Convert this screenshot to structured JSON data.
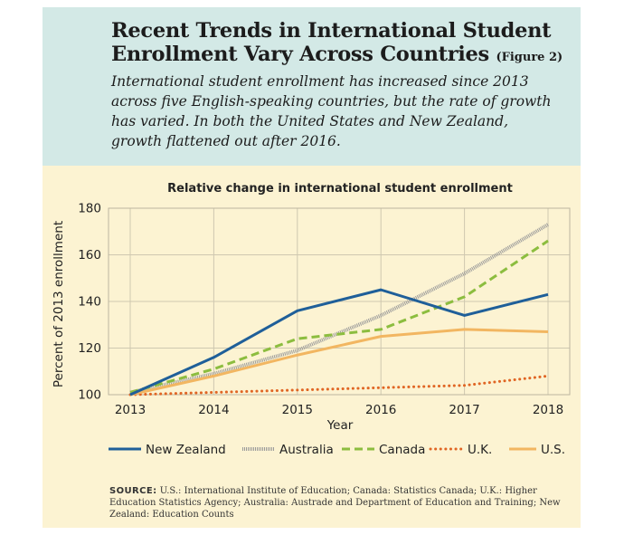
{
  "title": "Recent Trends in International Student Enrollment Vary Across Countries",
  "figure_label": "(Figure 2)",
  "subtitle": "International student enrollment has increased since 2013 across five English-speaking countries, but the rate of growth has varied. In both the United States and New Zealand, growth flattened out after 2016.",
  "source_label": "SOURCE:",
  "source_text": "U.S.: International Institute of Education; Canada: Statistics Canada; U.K.: Higher Education Statistics Agency; Australia: Austrade and Department of Education and Training; New Zealand: Education Counts",
  "colors": {
    "header_bg": "#d3e9e6",
    "chart_bg": "#fcf3d2",
    "new_zealand": "#1f5f99",
    "australia": "#9a9a9a",
    "canada": "#8cbd3f",
    "uk": "#e06524",
    "us": "#f2b661"
  },
  "chart_data": {
    "type": "line",
    "title": "Relative change in international student enrollment",
    "xlabel": "Year",
    "ylabel": "Percent of 2013 enrollment",
    "x": [
      2013,
      2014,
      2015,
      2016,
      2017,
      2018
    ],
    "ylim": [
      100,
      180
    ],
    "yticks": [
      100,
      120,
      140,
      160,
      180
    ],
    "grid": true,
    "legend_position": "bottom",
    "series": [
      {
        "name": "New Zealand",
        "values": [
          100,
          116,
          136,
          145,
          134,
          143
        ],
        "style": "solid",
        "color": "#1f5f99"
      },
      {
        "name": "Australia",
        "values": [
          101,
          109,
          119,
          134,
          152,
          173
        ],
        "style": "hatched",
        "color": "#9a9a9a"
      },
      {
        "name": "Canada",
        "values": [
          101,
          111,
          124,
          128,
          142,
          166
        ],
        "style": "dashed",
        "color": "#8cbd3f"
      },
      {
        "name": "U.K.",
        "values": [
          100,
          101,
          102,
          103,
          104,
          108
        ],
        "style": "dotted",
        "color": "#e06524"
      },
      {
        "name": "U.S.",
        "values": [
          100,
          108,
          117,
          125,
          128,
          127
        ],
        "style": "solid",
        "color": "#f2b661"
      }
    ]
  }
}
